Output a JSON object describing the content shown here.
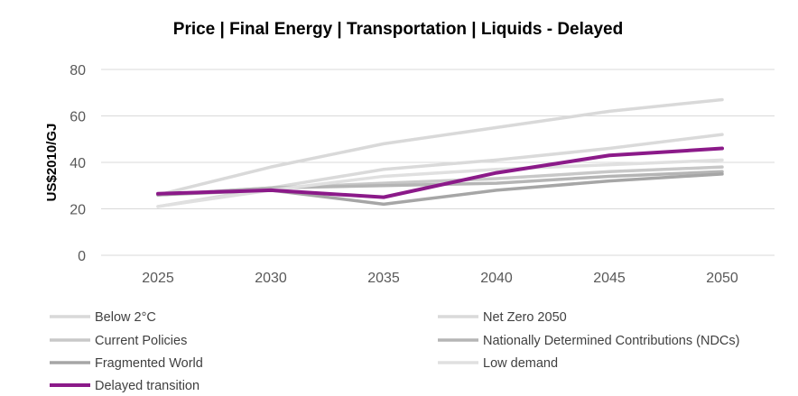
{
  "chart_data": {
    "type": "line",
    "title": "Price | Final Energy | Transportation | Liquids - Delayed",
    "xlabel": "",
    "ylabel": "US$2010/GJ",
    "ylim": [
      0,
      80
    ],
    "yticks": [
      0,
      20,
      40,
      60,
      80
    ],
    "categories": [
      "2025",
      "2030",
      "2035",
      "2040",
      "2045",
      "2050"
    ],
    "grid": true,
    "legend_position": "bottom",
    "series": [
      {
        "name": "Below 2°C",
        "color": "#d9d9d9",
        "values": [
          26,
          38,
          48,
          55,
          62,
          67
        ]
      },
      {
        "name": "Net Zero 2050",
        "color": "#dadada",
        "values": [
          21,
          29,
          37,
          41,
          46,
          52
        ]
      },
      {
        "name": "Current Policies",
        "color": "#c8c8c8",
        "values": [
          26,
          29,
          31,
          33,
          36,
          38
        ]
      },
      {
        "name": "Nationally Determined Contributions (NDCs)",
        "color": "#b5b5b5",
        "values": [
          26,
          29,
          30,
          31,
          34,
          36
        ]
      },
      {
        "name": "Fragmented World",
        "color": "#a6a6a6",
        "values": [
          26,
          28,
          22,
          28,
          32,
          35
        ]
      },
      {
        "name": "Low demand",
        "color": "#e0e0e0",
        "values": [
          21,
          28,
          34,
          37,
          39,
          41
        ]
      },
      {
        "name": "Delayed transition",
        "color": "#8b1a89",
        "values": [
          26.5,
          28,
          25,
          35.5,
          43,
          46
        ]
      }
    ]
  }
}
